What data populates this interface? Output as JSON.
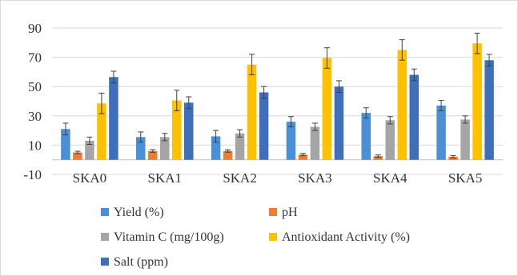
{
  "chart_data": {
    "type": "bar",
    "categories": [
      "SKA0",
      "SKA1",
      "SKA2",
      "SKA3",
      "SKA4",
      "SKA5"
    ],
    "series": [
      {
        "name": "Yield (%)",
        "color": "#4a90d9",
        "values": [
          21,
          15.5,
          16,
          26,
          32,
          37
        ],
        "errors": [
          4,
          3.5,
          4,
          3.5,
          3.5,
          3.5
        ]
      },
      {
        "name": "pH",
        "color": "#ed7d31",
        "values": [
          5,
          6,
          6,
          3.5,
          2.5,
          2
        ],
        "errors": [
          0.8,
          0.9,
          0.8,
          0.8,
          0.8,
          0.8
        ]
      },
      {
        "name": "Vitamin C (mg/100g)",
        "color": "#a5a5a5",
        "values": [
          13,
          15.5,
          18,
          22.5,
          27,
          27.5
        ],
        "errors": [
          2.5,
          2.5,
          2.5,
          2.5,
          2.5,
          2.5
        ]
      },
      {
        "name": "Antioxidant Activity (%)",
        "color": "#ffc000",
        "values": [
          38.5,
          40.5,
          65,
          69.5,
          75,
          79.5
        ],
        "errors": [
          7,
          7,
          7,
          7,
          7,
          7
        ]
      },
      {
        "name": "Salt (ppm)",
        "color": "#3f6fba",
        "values": [
          56.5,
          39,
          46,
          50,
          58,
          68
        ],
        "errors": [
          4,
          4,
          4,
          4,
          4,
          4
        ]
      }
    ],
    "yticks": [
      -10,
      10,
      30,
      50,
      70,
      90
    ],
    "ylim": [
      -10,
      90
    ],
    "grid": true,
    "legend_position": "bottom"
  }
}
